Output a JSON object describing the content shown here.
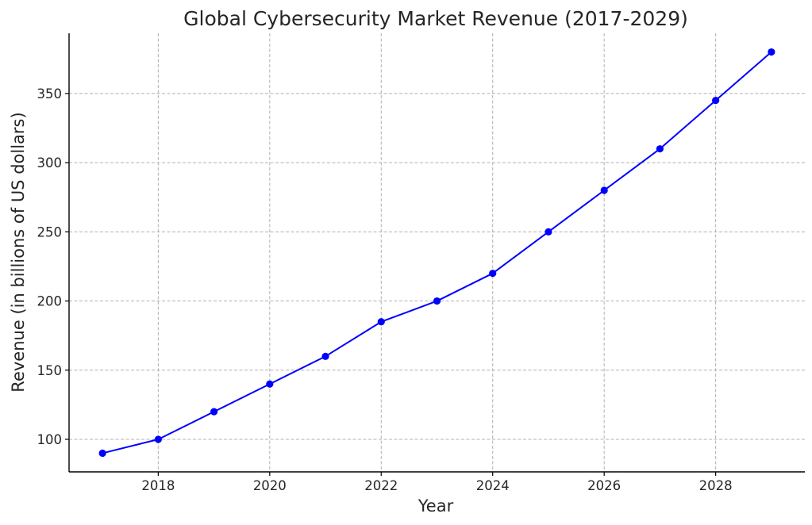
{
  "chart_data": {
    "type": "line",
    "title": "Global Cybersecurity Market Revenue (2017-2029)",
    "xlabel": "Year",
    "ylabel": "Revenue (in billions of US dollars)",
    "x": [
      2017,
      2018,
      2019,
      2020,
      2021,
      2022,
      2023,
      2024,
      2025,
      2026,
      2027,
      2028,
      2029
    ],
    "series": [
      {
        "values": [
          90,
          100,
          120,
          140,
          160,
          185,
          200,
          220,
          250,
          280,
          310,
          345,
          380
        ],
        "color": "#0000ff",
        "marker": "circle"
      }
    ],
    "xlim": [
      2016.4,
      2029.6
    ],
    "ylim": [
      76.5,
      393.5
    ],
    "x_ticks": [
      2018,
      2020,
      2022,
      2024,
      2026,
      2028
    ],
    "y_ticks": [
      100,
      150,
      200,
      250,
      300,
      350
    ],
    "grid": true,
    "legend": "none"
  }
}
